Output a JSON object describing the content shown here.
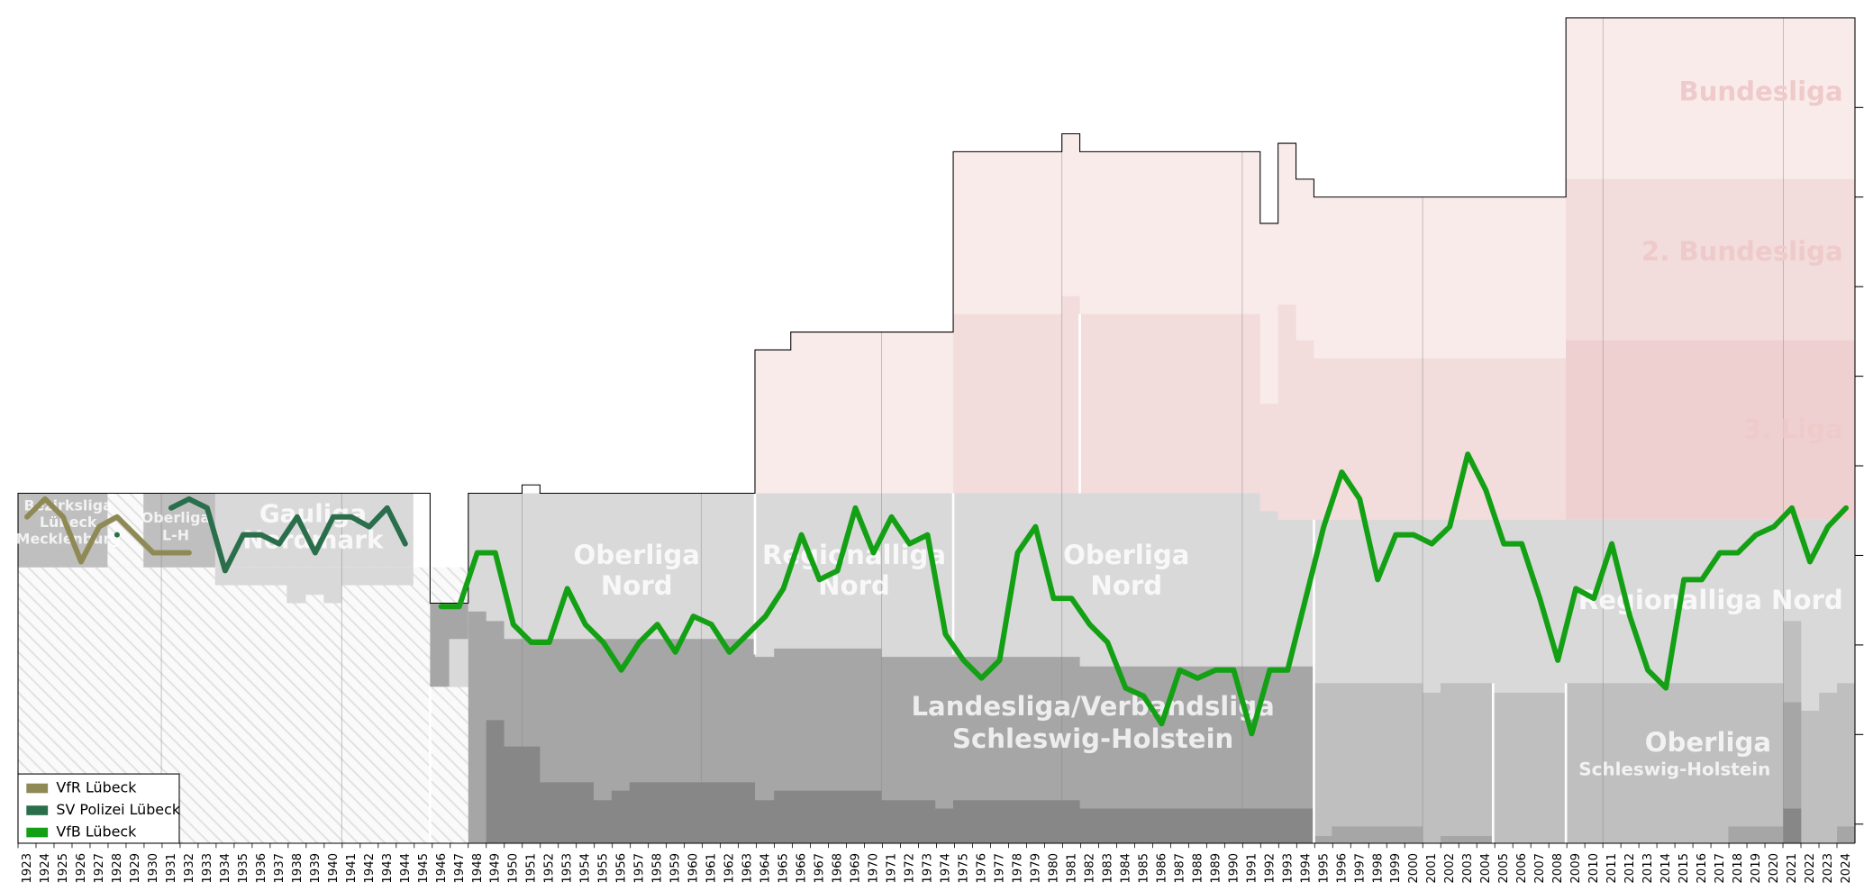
{
  "chart_data": {
    "type": "line",
    "categories": [
      1923,
      1924,
      1925,
      1926,
      1927,
      1928,
      1929,
      1930,
      1931,
      1932,
      1933,
      1934,
      1935,
      1936,
      1937,
      1938,
      1939,
      1940,
      1941,
      1942,
      1943,
      1944,
      1945,
      1946,
      1947,
      1948,
      1949,
      1950,
      1951,
      1952,
      1953,
      1954,
      1955,
      1956,
      1957,
      1958,
      1959,
      1960,
      1961,
      1962,
      1963,
      1964,
      1965,
      1966,
      1967,
      1968,
      1969,
      1970,
      1971,
      1972,
      1973,
      1974,
      1975,
      1976,
      1977,
      1978,
      1979,
      1980,
      1981,
      1982,
      1983,
      1984,
      1985,
      1986,
      1987,
      1988,
      1989,
      1990,
      1991,
      1992,
      1993,
      1994,
      1995,
      1996,
      1997,
      1998,
      1999,
      2000,
      2001,
      2002,
      2003,
      2004,
      2005,
      2006,
      2007,
      2008,
      2009,
      2010,
      2011,
      2012,
      2013,
      2014,
      2015,
      2016,
      2017,
      2018,
      2019,
      2020,
      2021,
      2022,
      2023,
      2024
    ],
    "series": [
      {
        "name": "VfR Lübeck",
        "color": "#8f8a55",
        "values": [
          34.3,
          36.3,
          34.3,
          29.3,
          33.2,
          34.3,
          32.3,
          30.3,
          30.3,
          30.3,
          null,
          null,
          null,
          null,
          null,
          null,
          null,
          null,
          null,
          null,
          null,
          null,
          null,
          null,
          null,
          null,
          null,
          null,
          null,
          null,
          null,
          null,
          null,
          null,
          null,
          null,
          null,
          null,
          null,
          null,
          null,
          null,
          null,
          null,
          null,
          null,
          null,
          null,
          null,
          null,
          null,
          null,
          null,
          null,
          null,
          null,
          null,
          null,
          null,
          null,
          null,
          null,
          null,
          null,
          null,
          null,
          null,
          null,
          null,
          null,
          null,
          null,
          null,
          null,
          null,
          null,
          null,
          null,
          null,
          null,
          null,
          null,
          null,
          null,
          null,
          null,
          null,
          null,
          null,
          null,
          null,
          null,
          null,
          null,
          null,
          null,
          null,
          null,
          null,
          null,
          null,
          null
        ]
      },
      {
        "name": "SV Polizei Lübeck",
        "color": "#2a6e4c",
        "values": [
          null,
          null,
          null,
          null,
          null,
          32.3,
          null,
          null,
          35.3,
          36.3,
          35.3,
          28.3,
          32.3,
          32.3,
          31.3,
          34.3,
          30.3,
          34.3,
          34.3,
          33.2,
          35.3,
          31.3,
          null,
          null,
          null,
          null,
          null,
          null,
          null,
          null,
          null,
          null,
          null,
          null,
          null,
          null,
          null,
          null,
          null,
          null,
          null,
          null,
          null,
          null,
          null,
          null,
          null,
          null,
          null,
          null,
          null,
          null,
          null,
          null,
          null,
          null,
          null,
          null,
          null,
          null,
          null,
          null,
          null,
          null,
          null,
          null,
          null,
          null,
          null,
          null,
          null,
          null,
          null,
          null,
          null,
          null,
          null,
          null,
          null,
          null,
          null,
          null,
          null,
          null,
          null,
          null,
          null,
          null,
          null,
          null,
          null,
          null,
          null,
          null,
          null,
          null,
          null,
          null,
          null,
          null,
          null,
          null
        ]
      },
      {
        "name": "VfB Lübeck",
        "color": "#14a014",
        "values": [
          null,
          null,
          null,
          null,
          null,
          null,
          null,
          null,
          null,
          null,
          null,
          null,
          null,
          null,
          null,
          null,
          null,
          null,
          null,
          null,
          null,
          null,
          null,
          24.3,
          24.3,
          30.3,
          30.3,
          22.3,
          20.3,
          20.3,
          26.3,
          22.3,
          20.3,
          17.2,
          20.3,
          22.3,
          19.2,
          23.2,
          22.3,
          19.2,
          21.2,
          23.2,
          26.3,
          32.3,
          27.3,
          28.3,
          35.3,
          30.3,
          34.3,
          31.3,
          32.3,
          21.2,
          18.3,
          16.3,
          18.3,
          30.3,
          33.2,
          25.2,
          25.2,
          22.3,
          20.3,
          15.2,
          14.3,
          11.2,
          17.2,
          16.3,
          17.2,
          17.2,
          10.1,
          17.2,
          17.2,
          25.2,
          33.2,
          39.3,
          36.3,
          27.3,
          32.3,
          32.3,
          31.3,
          33.2,
          41.3,
          37.3,
          31.3,
          31.3,
          25.2,
          18.3,
          26.3,
          25.2,
          31.3,
          23.2,
          17.2,
          15.2,
          27.3,
          27.3,
          30.3,
          30.3,
          32.3,
          33.2,
          35.3,
          29.3,
          33.2,
          35.3
        ]
      }
    ],
    "ylim": [
      -2,
      90
    ],
    "yticks": [
      0,
      10,
      20,
      30,
      40,
      50,
      60,
      70,
      80
    ],
    "legend": "lower left",
    "annotations": [
      [
        "Bezirksliga",
        "Lübeck",
        "Mecklenburg"
      ],
      [
        "Oberliga",
        "L-H"
      ],
      [
        "Gauliga",
        "Nordmark"
      ],
      [
        "Oberliga",
        "Nord"
      ],
      [
        "Regionalliga",
        "Nord"
      ],
      [
        "Oberliga",
        "Nord"
      ],
      [
        "Landesliga/Verbandsliga",
        "Schleswig-Holstein"
      ],
      [
        "Regionalliga Nord"
      ],
      [
        "Oberliga",
        "Schleswig-Holstein"
      ],
      [
        "Bundesliga"
      ],
      [
        "2. Bundesliga"
      ],
      [
        "3. Liga"
      ]
    ]
  }
}
